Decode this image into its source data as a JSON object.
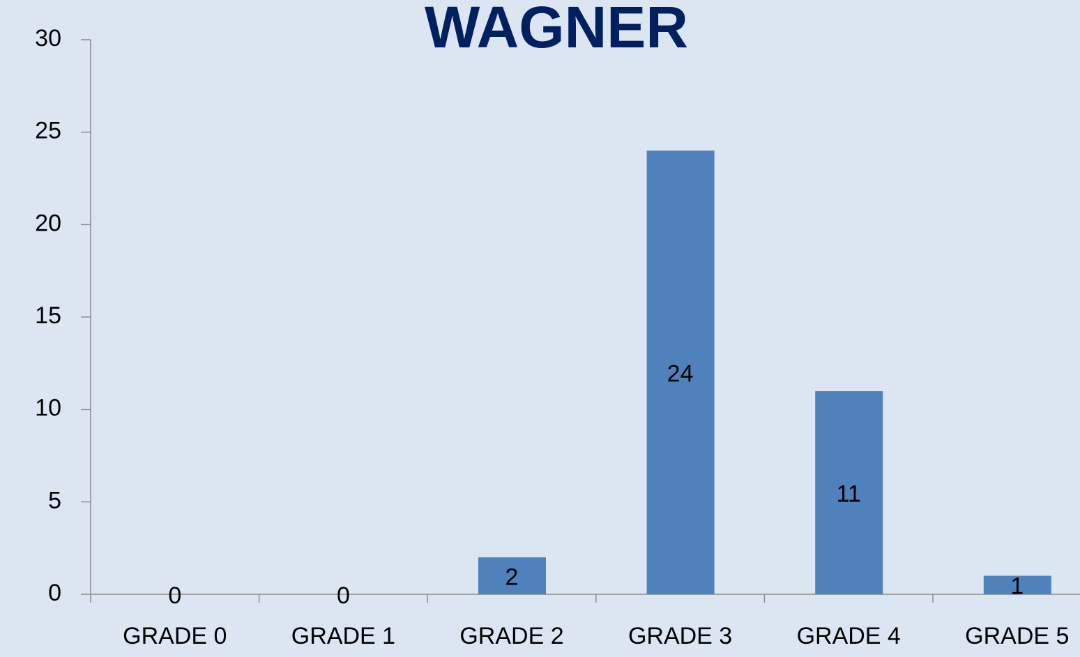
{
  "chart_data": {
    "type": "bar",
    "title": "WAGNER",
    "categories": [
      "GRADE 0",
      "GRADE 1",
      "GRADE 2",
      "GRADE 3",
      "GRADE 4",
      "GRADE 5"
    ],
    "values": [
      0,
      0,
      2,
      24,
      11,
      1
    ],
    "color": "#4f81bd",
    "ylim": [
      0,
      30
    ],
    "yticks": [
      0,
      5,
      10,
      15,
      20,
      25,
      30
    ],
    "grid": false
  }
}
